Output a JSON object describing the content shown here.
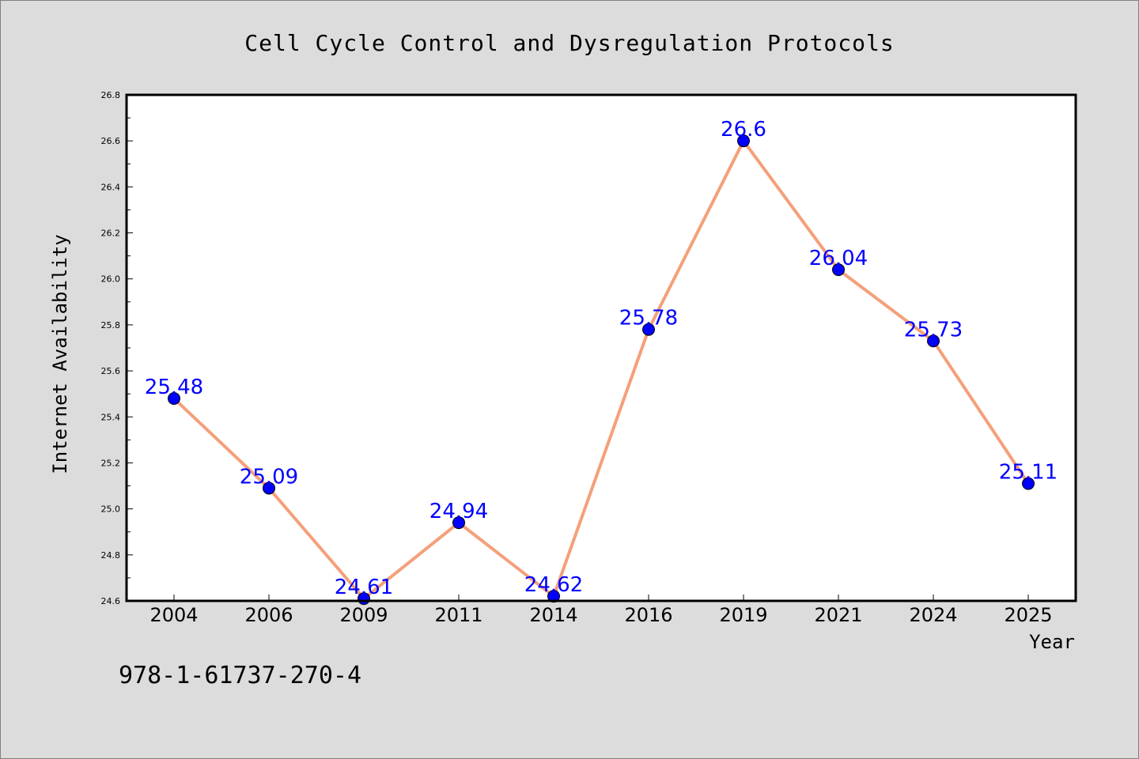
{
  "chart_data": {
    "type": "line",
    "title": "Cell Cycle Control and Dysregulation Protocols",
    "xlabel": "Year",
    "ylabel": "Internet Availability",
    "categories": [
      "2004",
      "2006",
      "2009",
      "2011",
      "2014",
      "2016",
      "2019",
      "2021",
      "2024",
      "2025"
    ],
    "series": [
      {
        "values": [
          25.48,
          25.09,
          24.61,
          24.94,
          24.62,
          25.78,
          26.6,
          26.04,
          25.73,
          25.11
        ]
      }
    ],
    "data_labels": [
      "25.48",
      "25.09",
      "24.61",
      "24.94",
      "24.62",
      "25.78",
      "26.6",
      "26.04",
      "25.73",
      "25.11"
    ],
    "ylim": [
      24.6,
      26.8
    ],
    "yticks": [
      "24.6",
      "24.8",
      "25.0",
      "25.2",
      "25.4",
      "25.6",
      "25.8",
      "26.0",
      "26.2",
      "26.4",
      "26.6",
      "26.8"
    ],
    "grid": false,
    "legend": "none",
    "colors": {
      "line": "#f4a07a",
      "marker": "#0000ff",
      "label": "#0000ff",
      "background": "#dcdcdc",
      "plot_background": "#ffffff"
    }
  },
  "footnote": "978-1-61737-270-4"
}
